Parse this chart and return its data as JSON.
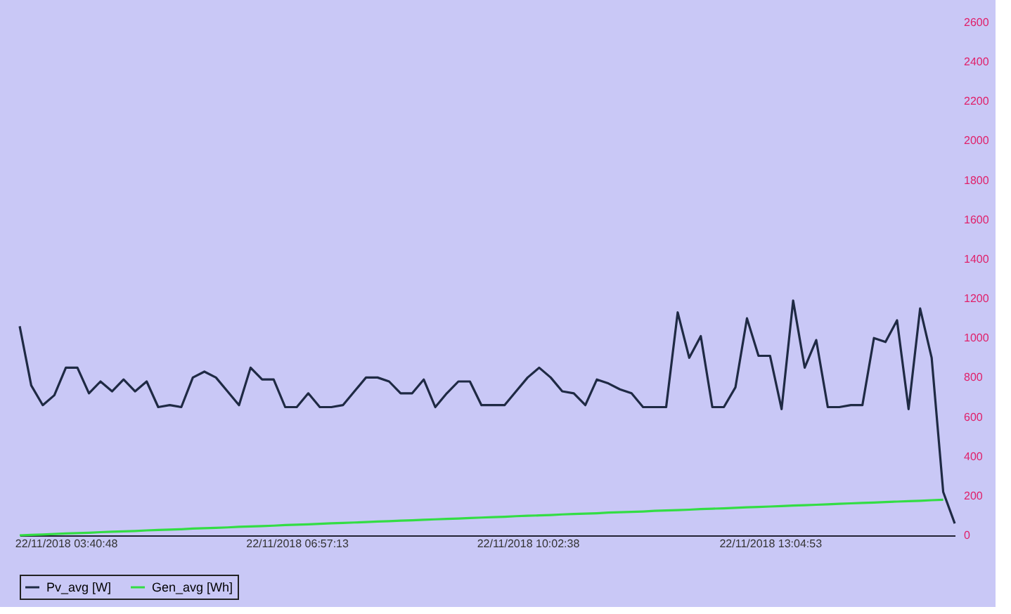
{
  "chart_data": {
    "type": "line",
    "categories": [
      null,
      null,
      null,
      null,
      "22/11/2018 03:40:48",
      null,
      null,
      null,
      null,
      null,
      null,
      null,
      null,
      null,
      null,
      null,
      null,
      null,
      null,
      null,
      null,
      null,
      null,
      null,
      "22/11/2018 06:57:13",
      null,
      null,
      null,
      null,
      null,
      null,
      null,
      null,
      null,
      null,
      null,
      null,
      null,
      null,
      null,
      null,
      null,
      null,
      null,
      "22/11/2018 10:02:38",
      null,
      null,
      null,
      null,
      null,
      null,
      null,
      null,
      null,
      null,
      null,
      null,
      null,
      null,
      null,
      null,
      null,
      null,
      null,
      null,
      "22/11/2018 13:04:53",
      null,
      null,
      null,
      null,
      null,
      null,
      null,
      null,
      null,
      null,
      null,
      null,
      null,
      null,
      null,
      null
    ],
    "series": [
      {
        "name": "Pv_avg [W]",
        "color": "#1f2a44",
        "values": [
          1060,
          760,
          660,
          710,
          850,
          850,
          720,
          780,
          730,
          790,
          730,
          780,
          650,
          660,
          650,
          800,
          830,
          800,
          730,
          660,
          850,
          790,
          790,
          650,
          650,
          720,
          650,
          650,
          660,
          730,
          800,
          800,
          780,
          720,
          720,
          790,
          650,
          720,
          780,
          780,
          660,
          660,
          660,
          730,
          800,
          850,
          800,
          730,
          720,
          660,
          790,
          770,
          740,
          720,
          650,
          650,
          650,
          1130,
          900,
          1010,
          650,
          650,
          750,
          1100,
          910,
          910,
          640,
          1190,
          850,
          990,
          650,
          650,
          660,
          660,
          1000,
          980,
          1090,
          640,
          1150,
          900,
          220,
          60
        ]
      },
      {
        "name": "Gen_avg [Wh]",
        "color": "#33dd44",
        "values": [
          0,
          2,
          4,
          7,
          9,
          11,
          13,
          16,
          18,
          20,
          22,
          25,
          27,
          29,
          31,
          34,
          36,
          38,
          40,
          43,
          45,
          47,
          49,
          52,
          54,
          56,
          58,
          61,
          63,
          65,
          67,
          70,
          72,
          74,
          76,
          79,
          81,
          83,
          85,
          88,
          90,
          92,
          94,
          97,
          99,
          101,
          103,
          106,
          108,
          110,
          112,
          115,
          117,
          119,
          121,
          124,
          126,
          128,
          130,
          133,
          135,
          137,
          139,
          142,
          144,
          146,
          148,
          151,
          153,
          155,
          157,
          160,
          162,
          164,
          166,
          169,
          171,
          173,
          175,
          178,
          180,
          null
        ]
      }
    ],
    "ylim": [
      0,
      2600
    ],
    "yticks": [
      0,
      200,
      400,
      600,
      800,
      1000,
      1200,
      1400,
      1600,
      1800,
      2000,
      2200,
      2400,
      2600
    ],
    "grid": false,
    "legend": "bottom",
    "line_style": "solid",
    "marker": "none"
  }
}
